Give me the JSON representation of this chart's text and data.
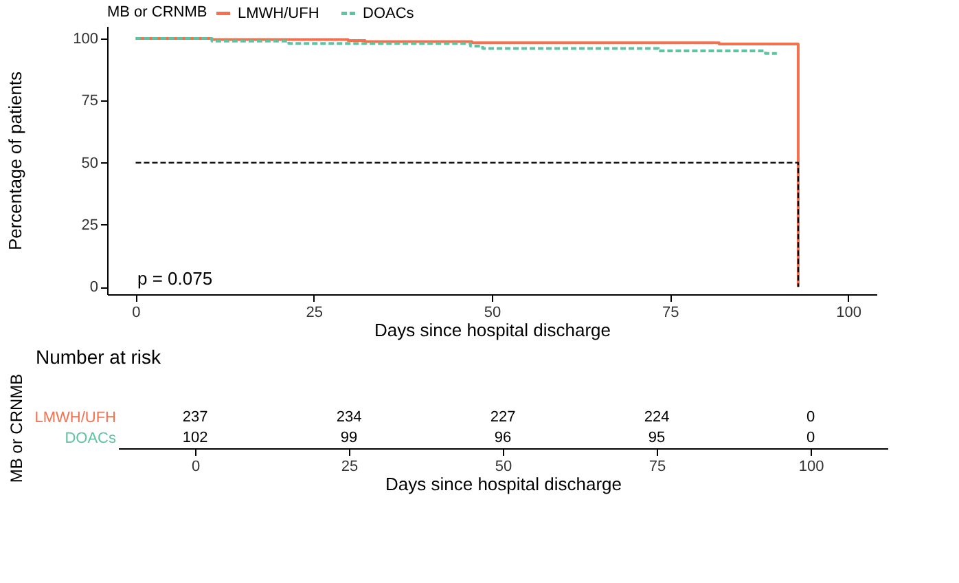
{
  "chart_data": [
    {
      "type": "step",
      "xlabel": "Days since hospital discharge",
      "ylabel": "Percentage of patients",
      "legend_title": "MB or CRNMB",
      "legend": "top",
      "xlim": [
        -4,
        104
      ],
      "xticks": [
        0,
        25,
        50,
        75,
        100
      ],
      "ylim": [
        -3,
        105
      ],
      "yticks": [
        0,
        25,
        50,
        75,
        100
      ],
      "grid": false,
      "annotations": [
        "p = 0.075"
      ],
      "series": [
        {
          "name": "LMWH/UFH",
          "color": "#f4714f",
          "line_style": "solid",
          "x": [
            0,
            10.7,
            29.8,
            32.2,
            47.2,
            81.9,
            93,
            93
          ],
          "values": [
            100,
            99.6,
            99.2,
            98.8,
            98.3,
            97.8,
            97.8,
            0
          ]
        },
        {
          "name": "DOACs",
          "color": "#5ec39f",
          "line_style": "dashed",
          "x": [
            0,
            10.7,
            21.5,
            47,
            48.7,
            73.4,
            88.4,
            90
          ],
          "values": [
            100,
            99,
            98,
            97,
            96,
            95,
            94,
            94
          ]
        },
        {
          "type": "line",
          "color": "#000000",
          "line_style": "dashed",
          "x": [
            0,
            93,
            93
          ],
          "values": [
            50,
            50,
            0
          ]
        }
      ]
    },
    {
      "type": "heatmap",
      "title": "Number at risk",
      "xlabel": "Days since hospital discharge",
      "ylabel": "MB or CRNMB",
      "categories": [
        "0",
        "25",
        "50",
        "75",
        "100"
      ],
      "y_categories": [
        "LMWH/UFH",
        "DOACs"
      ],
      "colors": [
        "#f4714f",
        "#5ec39f"
      ],
      "cells": [
        [
          237,
          234,
          227,
          224,
          0
        ],
        [
          102,
          99,
          96,
          95,
          0
        ]
      ],
      "data_labels": true
    }
  ]
}
